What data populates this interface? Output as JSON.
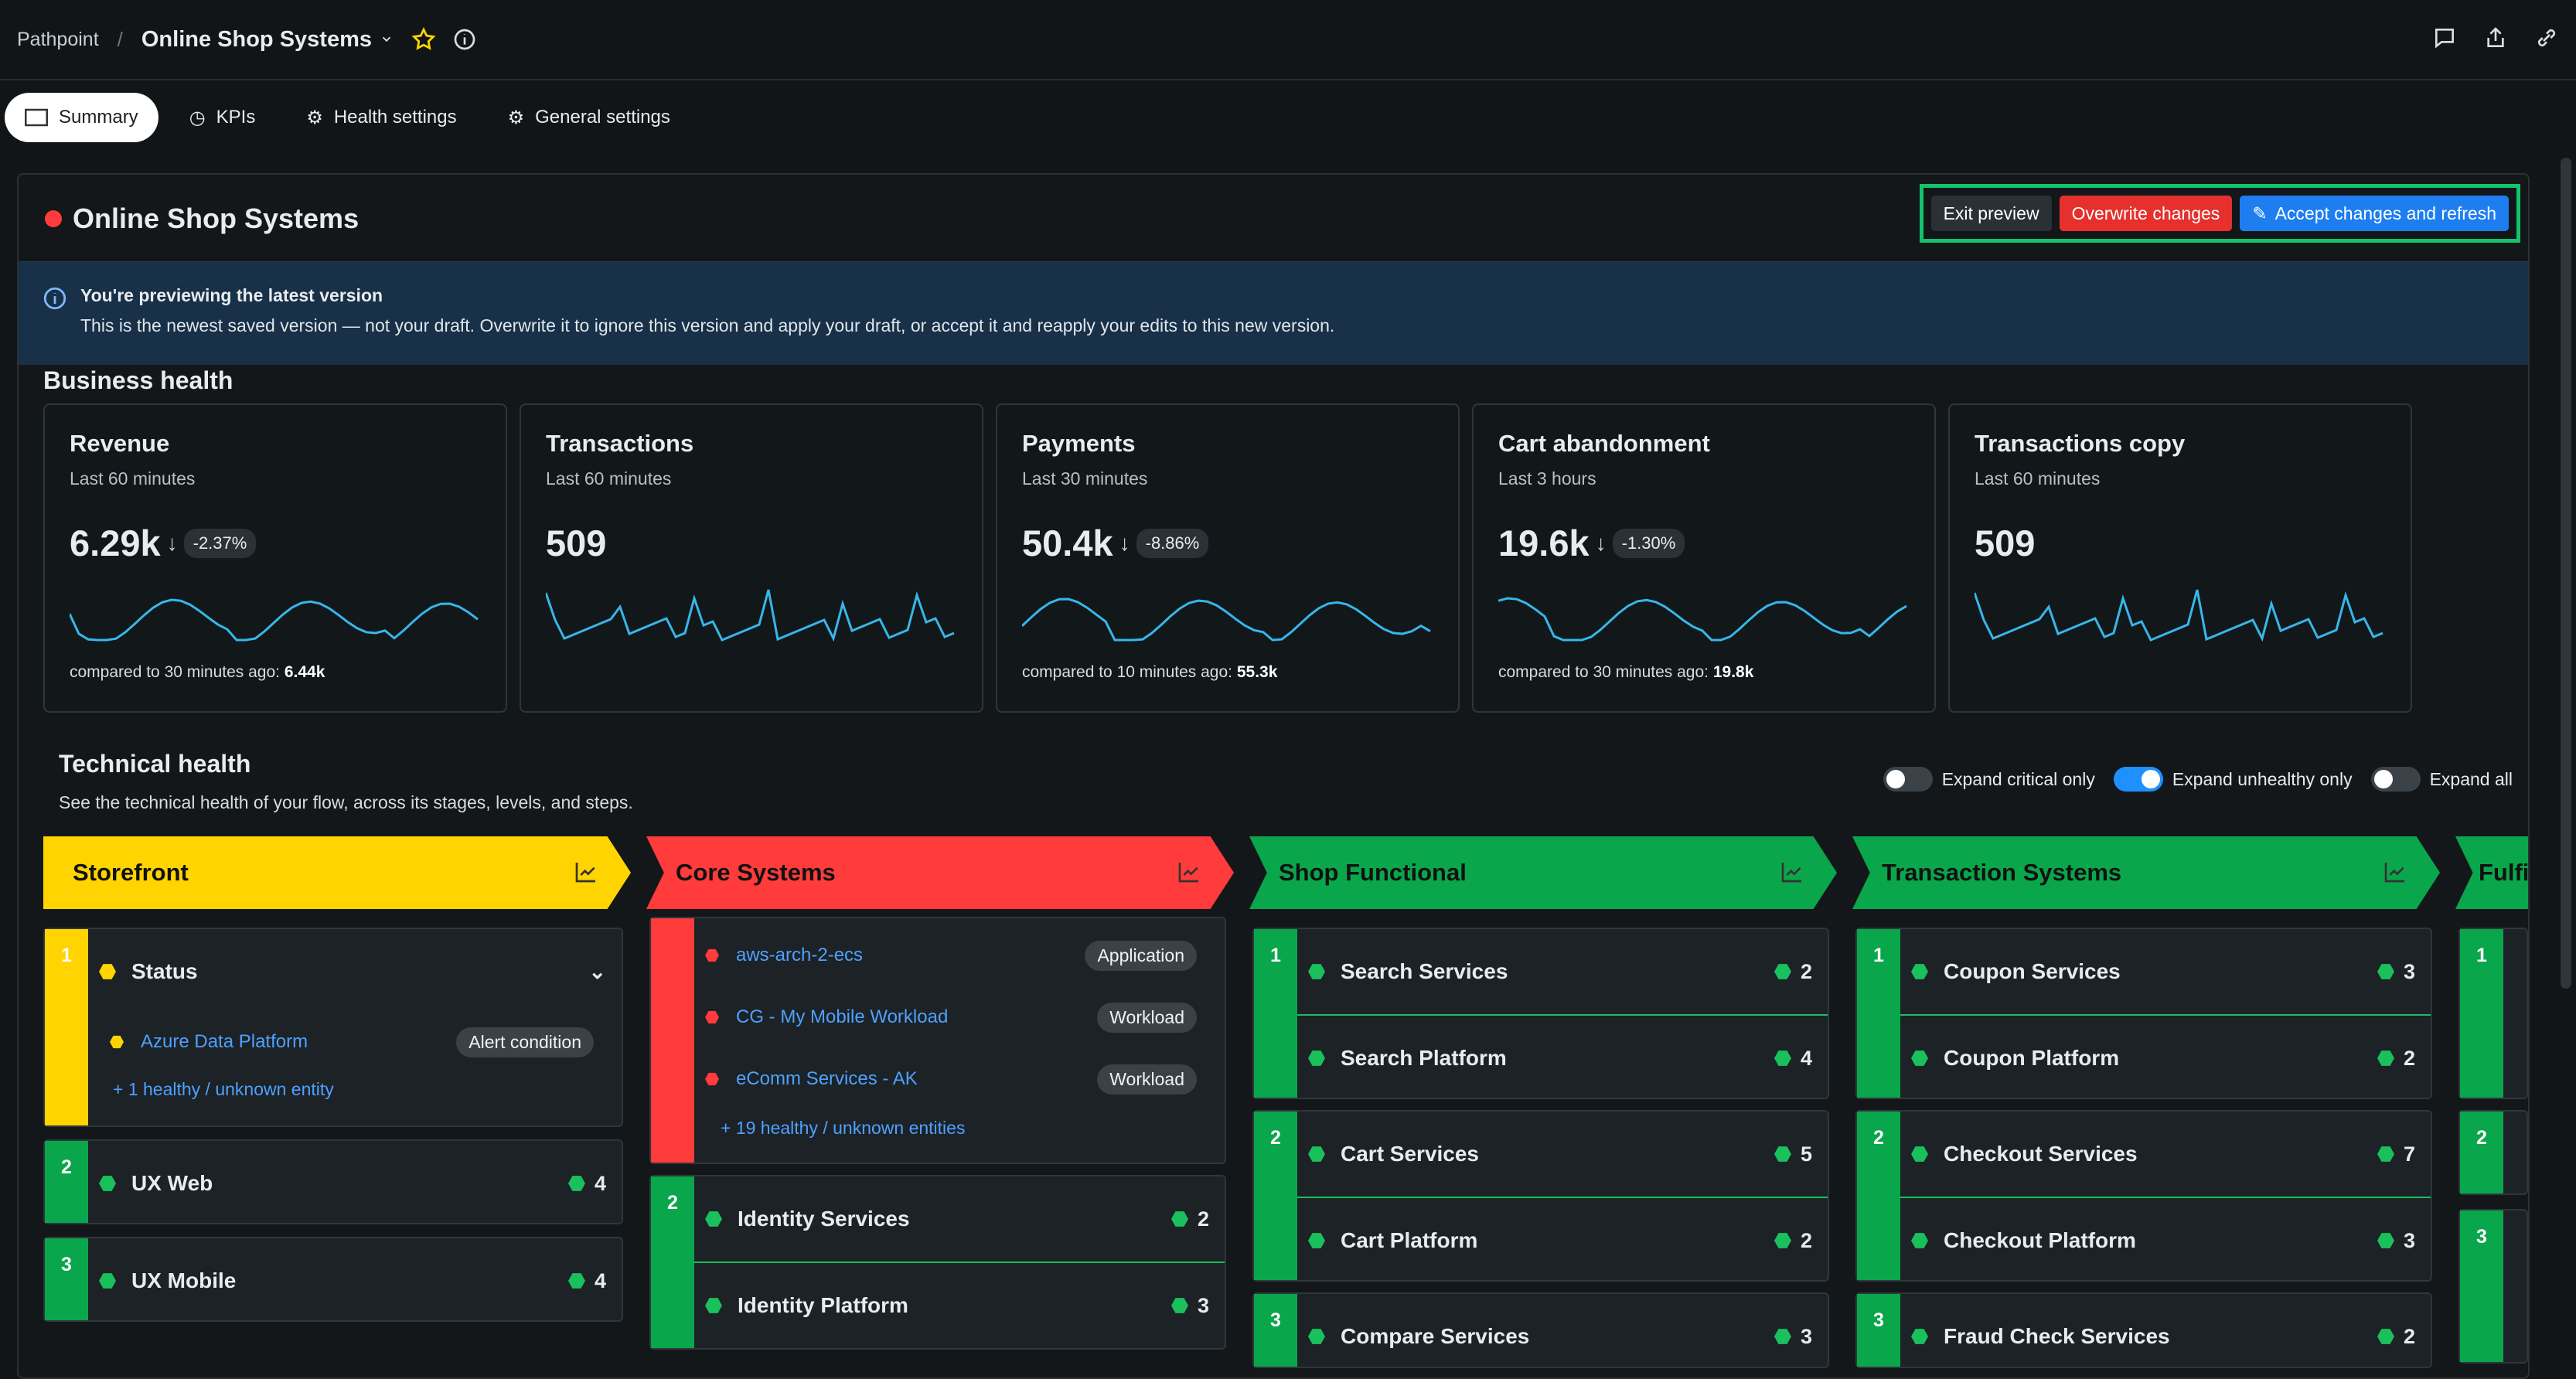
{
  "breadcrumb": {
    "root": "Pathpoint",
    "title": "Online Shop Systems"
  },
  "tabs": [
    "Summary",
    "KPIs",
    "Health settings",
    "General settings"
  ],
  "header": {
    "title": "Online Shop Systems",
    "exit": "Exit preview",
    "overwrite": "Overwrite changes",
    "accept": "Accept changes and refresh"
  },
  "banner": {
    "title": "You're previewing the latest version",
    "text": "This is the newest saved version — not your draft. Overwrite it to ignore this version and apply your draft, or accept it and reapply your edits to this new version."
  },
  "business": {
    "heading": "Business health",
    "cards": [
      {
        "name": "Revenue",
        "period": "Last 60 minutes",
        "value": "6.29k",
        "change": "-2.37%",
        "compare": "compared to 30 minutes ago: ",
        "compareValue": "6.44k"
      },
      {
        "name": "Transactions",
        "period": "Last 60 minutes",
        "value": "509",
        "change": "",
        "compare": "",
        "compareValue": ""
      },
      {
        "name": "Payments",
        "period": "Last 30 minutes",
        "value": "50.4k",
        "change": "-8.86%",
        "compare": "compared to 10 minutes ago: ",
        "compareValue": "55.3k"
      },
      {
        "name": "Cart abandonment",
        "period": "Last 3 hours",
        "value": "19.6k",
        "change": "-1.30%",
        "compare": "compared to 30 minutes ago: ",
        "compareValue": "19.8k"
      },
      {
        "name": "Transactions copy",
        "period": "Last 60 minutes",
        "value": "509",
        "change": "",
        "compare": "",
        "compareValue": ""
      }
    ]
  },
  "technical": {
    "heading": "Technical health",
    "subtitle": "See the technical health of your flow, across its stages, levels, and steps.",
    "toggles": [
      "Expand critical only",
      "Expand unhealthy only",
      "Expand all"
    ]
  },
  "stages": {
    "storefront": {
      "name": "Storefront",
      "status_label": "Status",
      "entity": "Azure Data Platform",
      "tag": "Alert condition",
      "more": "+ 1 healthy / unknown entity",
      "l2": "UX Web",
      "l2c": "4",
      "l3": "UX Mobile",
      "l3c": "4"
    },
    "core": {
      "name": "Core Systems",
      "e1": "aws-arch-2-ecs",
      "t1": "Application",
      "e2": "CG - My Mobile Workload",
      "t2": "Workload",
      "e3": "eComm Services - AK",
      "t3": "Workload",
      "more": "+ 19 healthy / unknown entities",
      "r1": "Identity Services",
      "r1c": "2",
      "r2": "Identity Platform",
      "r2c": "3"
    },
    "shop": {
      "name": "Shop Functional",
      "r1": "Search Services",
      "r1c": "2",
      "r2": "Search Platform",
      "r2c": "4",
      "r3": "Cart Services",
      "r3c": "5",
      "r4": "Cart Platform",
      "r4c": "2",
      "r5": "Compare Services",
      "r5c": "3"
    },
    "txn": {
      "name": "Transaction Systems",
      "r1": "Coupon Services",
      "r1c": "3",
      "r2": "Coupon Platform",
      "r2c": "2",
      "r3": "Checkout Services",
      "r3c": "7",
      "r4": "Checkout Platform",
      "r4c": "3",
      "r5": "Fraud Check Services",
      "r5c": "2"
    },
    "fulfill": {
      "name": "Fulfi"
    }
  },
  "levels": [
    "1",
    "2",
    "3"
  ],
  "colors": {
    "accent": "#36b7ea",
    "green": "#0aa64b",
    "yellow": "#ffd400",
    "red": "#ff3b3b"
  }
}
